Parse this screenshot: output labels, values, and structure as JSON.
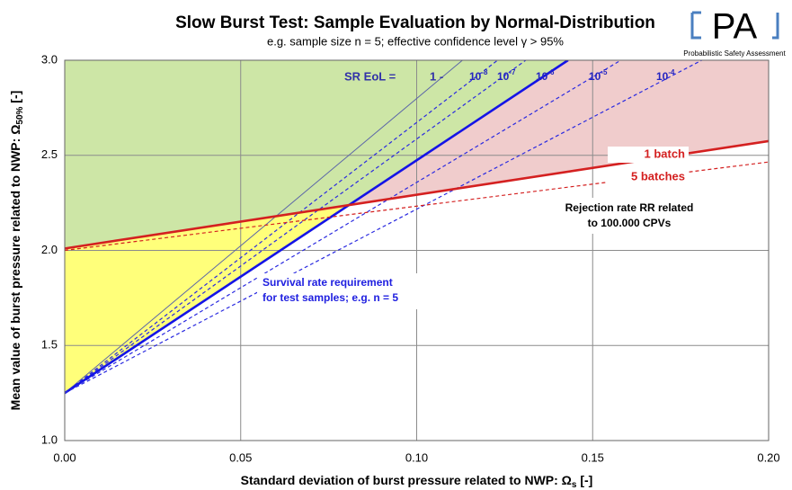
{
  "chart_data": {
    "type": "line",
    "title": "Slow Burst Test: Sample Evaluation by Normal-Distribution",
    "subtitle": "e.g. sample size n = 5; effective confidence level γ > 95%",
    "x_label": {
      "text": "Standard deviation of burst pressure related to NWP:  Ω",
      "sub": "s",
      "unit": " [-]"
    },
    "y_label": {
      "text": "Mean value of burst pressure related to NWP:  Ω",
      "sub": "50%",
      "unit": "  [-]"
    },
    "xlim": [
      0,
      0.2
    ],
    "ylim": [
      1.0,
      3.0
    ],
    "xticks": [
      {
        "value": 0,
        "label": "0.00"
      },
      0.05,
      {
        "value": 0.1,
        "label": "0.10"
      },
      0.15,
      {
        "value": 0.2,
        "label": "0.20"
      }
    ],
    "yticks": [
      {
        "value": 1,
        "label": "1.0"
      },
      1.5,
      {
        "value": 2,
        "label": "2.0"
      },
      2.5,
      {
        "value": 3,
        "label": "3.0"
      }
    ],
    "grid": true,
    "region_colors": {
      "safe": "#cde6a6",
      "unsafe": "#f0cccc",
      "gap": "#ffff7a"
    },
    "sr_label": "SR EoL =",
    "sr_prefix": "1 -",
    "series": [
      {
        "color": "#5a64a8",
        "style": "solid",
        "x": [
          0,
          0.113
        ],
        "values": [
          1.25,
          3.0
        ]
      },
      {
        "label": {
          "base": "10",
          "exp": "-8"
        },
        "color": "#2a2ae0",
        "style": "dashed",
        "x": [
          0,
          0.123
        ],
        "values": [
          1.25,
          3.0
        ]
      },
      {
        "label": {
          "base": "10",
          "exp": "-7"
        },
        "color": "#2a2ae0",
        "style": "dashed",
        "x": [
          0,
          0.131
        ],
        "values": [
          1.25,
          3.0
        ]
      },
      {
        "label": {
          "base": "10",
          "exp": "-6"
        },
        "color": "#1414e6",
        "style": "thick",
        "x": [
          0,
          0.143
        ],
        "values": [
          1.25,
          3.0
        ]
      },
      {
        "label": {
          "base": "10",
          "exp": "-5"
        },
        "color": "#2a2ae0",
        "style": "dashed",
        "x": [
          0,
          0.158
        ],
        "values": [
          1.25,
          3.0
        ]
      },
      {
        "label": {
          "base": "10",
          "exp": "-4"
        },
        "color": "#2a2ae0",
        "style": "dashed",
        "x": [
          0,
          0.181
        ],
        "values": [
          1.25,
          3.0
        ]
      },
      {
        "name": "1 batch",
        "color": "#d42020",
        "style": "thick",
        "x": [
          0,
          0.2
        ],
        "values": [
          2.01,
          2.575
        ]
      },
      {
        "name": "5 batches",
        "color": "#d42020",
        "style": "dashed",
        "x": [
          0,
          0.2
        ],
        "values": [
          2.0,
          2.465
        ]
      }
    ],
    "annotations": {
      "survival": [
        "Survival rate requirement",
        "for test samples; e.g. n = 5"
      ],
      "rejection": [
        "Rejection rate RR related",
        "to 100.000 CPVs"
      ]
    },
    "logo": {
      "text": "PA",
      "caption": "Probabilistic Safety Assessment"
    }
  }
}
